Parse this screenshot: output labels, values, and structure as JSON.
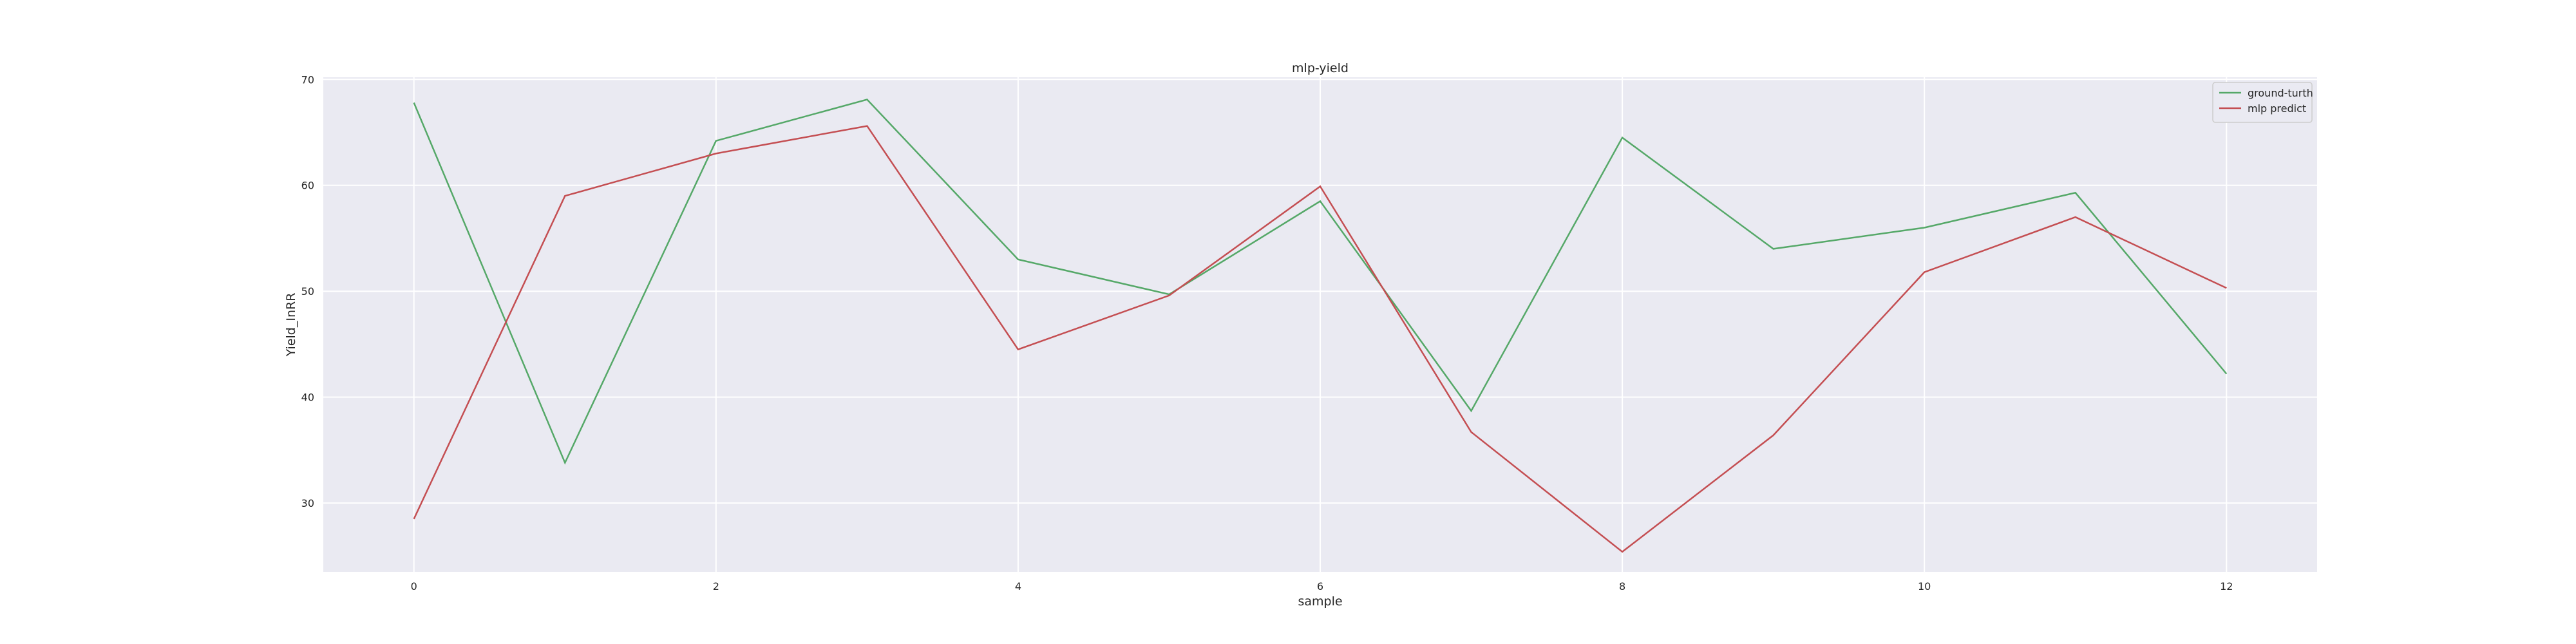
{
  "chart_data": {
    "type": "line",
    "title": "mlp-yield",
    "xlabel": "sample",
    "ylabel": "Yield_InRR",
    "xlim": [
      -0.6,
      12.6
    ],
    "ylim": [
      23.5,
      70.2
    ],
    "x_ticks": [
      0,
      2,
      4,
      6,
      8,
      10,
      12
    ],
    "y_ticks": [
      30,
      40,
      50,
      60,
      70
    ],
    "grid": true,
    "legend_position": "top-right",
    "x": [
      0,
      1,
      2,
      3,
      4,
      5,
      6,
      7,
      8,
      9,
      10,
      11,
      12
    ],
    "series": [
      {
        "name": "ground-turth",
        "color": "#55a868",
        "values": [
          67.8,
          33.8,
          64.2,
          68.1,
          53.0,
          49.7,
          58.5,
          38.7,
          64.5,
          54.0,
          56.0,
          59.3,
          42.2
        ]
      },
      {
        "name": "mlp predict",
        "color": "#c44e52",
        "values": [
          28.5,
          59.0,
          63.0,
          65.6,
          44.5,
          49.6,
          59.9,
          36.7,
          25.4,
          36.4,
          51.8,
          57.0,
          50.3
        ]
      }
    ]
  }
}
